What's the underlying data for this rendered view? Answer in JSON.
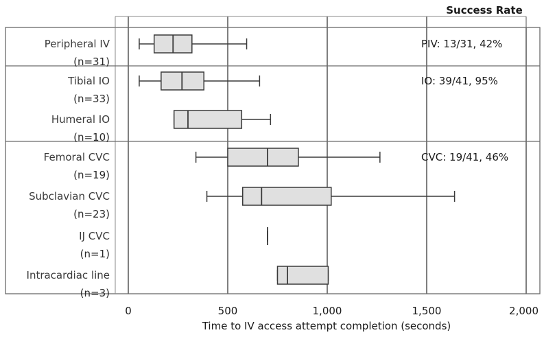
{
  "chart_data": {
    "type": "box",
    "title": "",
    "header": "Success Rate",
    "xlabel": "Time to IV access attempt completion (seconds)",
    "ylabel": "",
    "xlim": [
      0,
      2000
    ],
    "x_ticks": [
      0,
      500,
      1000,
      1500,
      2000
    ],
    "x_tick_labels": [
      "0",
      "500",
      "1,000",
      "1,500",
      "2,000"
    ],
    "grid": "vertical",
    "groups": [
      {
        "rate": "PIV: 13/31, 42%",
        "rows": [
          {
            "label": "Peripheral IV",
            "n": "(n=31)",
            "min": 55,
            "q1": 130,
            "median": 225,
            "q3": 320,
            "max": 595
          }
        ]
      },
      {
        "rate": "IO: 39/41, 95%",
        "rows": [
          {
            "label": "Tibial IO",
            "n": "(n=33)",
            "min": 55,
            "q1": 165,
            "median": 270,
            "q3": 380,
            "max": 660
          },
          {
            "label": "Humeral IO",
            "n": "(n=10)",
            "min": 230,
            "q1": 230,
            "median": 300,
            "q3": 570,
            "max": 715
          }
        ]
      },
      {
        "rate": "CVC: 19/41, 46%",
        "rows": [
          {
            "label": "Femoral CVC",
            "n": "(n=19)",
            "min": 340,
            "q1": 500,
            "median": 700,
            "q3": 855,
            "max": 1265
          },
          {
            "label": "Subclavian CVC",
            "n": "(n=23)",
            "min": 395,
            "q1": 575,
            "median": 670,
            "q3": 1020,
            "max": 1640
          },
          {
            "label": "IJ CVC",
            "n": "(n=1)",
            "min": 700,
            "q1": 700,
            "median": 700,
            "q3": 700,
            "max": 700
          },
          {
            "label": "Intracardiac line",
            "n": "(n=3)",
            "min": 750,
            "q1": 750,
            "median": 800,
            "q3": 1005,
            "max": 1005
          }
        ]
      }
    ],
    "colors": {
      "box_fill": "#e0e0e0",
      "stroke": "#3a3a3a",
      "grid": "#3a3a3a"
    }
  }
}
